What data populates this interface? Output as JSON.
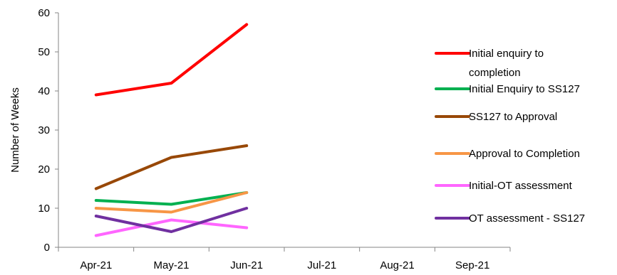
{
  "chart_data": {
    "type": "line",
    "title": "",
    "xlabel": "",
    "ylabel": "Number of Weeks",
    "categories": [
      "Apr-21",
      "May-21",
      "Jun-21",
      "Jul-21",
      "Aug-21",
      "Sep-21"
    ],
    "ylim": [
      0,
      60
    ],
    "yticks": [
      0,
      10,
      20,
      30,
      40,
      50,
      60
    ],
    "grid": false,
    "legend_position": "right",
    "series": [
      {
        "name": "Initial enquiry to completion",
        "legend_lines": [
          "Initial enquiry to",
          "completion"
        ],
        "color": "#ff0000",
        "values": [
          39,
          42,
          57,
          null,
          null,
          null
        ]
      },
      {
        "name": "Initial Enquiry to SS127",
        "legend_lines": [
          "Initial Enquiry to SS127"
        ],
        "color": "#00b050",
        "values": [
          12,
          11,
          14,
          null,
          null,
          null
        ]
      },
      {
        "name": "SS127 to Approval",
        "legend_lines": [
          "SS127 to Approval"
        ],
        "color": "#984807",
        "values": [
          15,
          23,
          26,
          null,
          null,
          null
        ]
      },
      {
        "name": "Approval to Completion",
        "legend_lines": [
          "Approval to Completion"
        ],
        "color": "#f79646",
        "values": [
          10,
          9,
          14,
          null,
          null,
          null
        ]
      },
      {
        "name": "Initial-OT assessment",
        "legend_lines": [
          "Initial-OT assessment"
        ],
        "color": "#ff66ff",
        "values": [
          3,
          7,
          5,
          null,
          null,
          null
        ]
      },
      {
        "name": "OT assessment - SS127",
        "legend_lines": [
          "OT assessment - SS127"
        ],
        "color": "#7030a0",
        "values": [
          8,
          4,
          10,
          null,
          null,
          null
        ]
      }
    ]
  }
}
